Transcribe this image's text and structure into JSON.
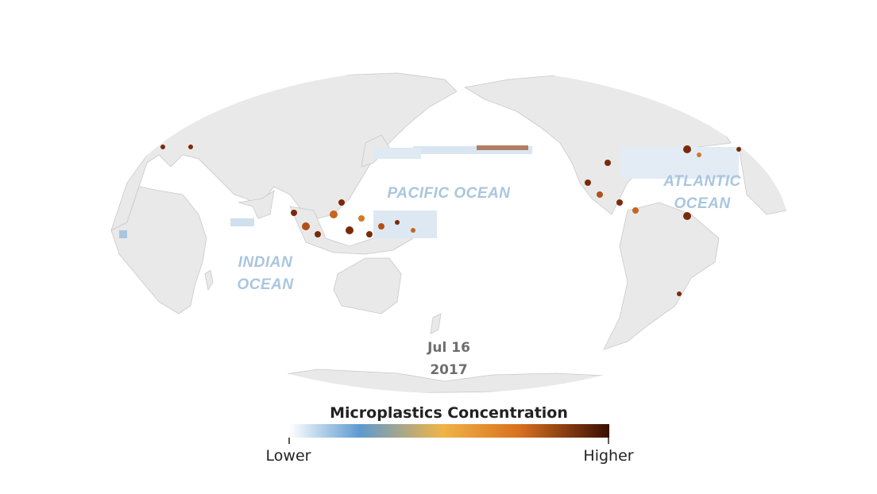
{
  "map": {
    "labels": {
      "pacific": [
        "PACIFIC OCEAN"
      ],
      "atlantic": [
        "ATLANTIC",
        "OCEAN"
      ],
      "indian": [
        "INDIAN",
        "OCEAN"
      ]
    },
    "date": {
      "day": "Jul 16",
      "year": "2017"
    },
    "legend": {
      "title": "Microplastics Concentration",
      "low": "Lower",
      "high": "Higher"
    }
  }
}
